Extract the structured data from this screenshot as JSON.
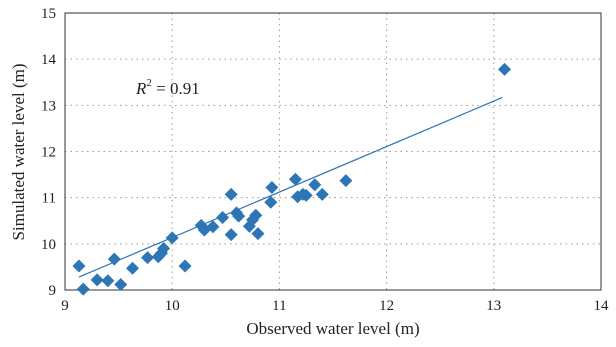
{
  "chart_data": {
    "type": "scatter",
    "xlabel": "Observed water level (m)",
    "ylabel": "Simulated water level (m)",
    "xlim": [
      9,
      14
    ],
    "ylim": [
      9,
      15
    ],
    "xticks": [
      "9",
      "10",
      "11",
      "12",
      "13",
      "14"
    ],
    "yticks": [
      "9",
      "10",
      "11",
      "12",
      "13",
      "14",
      "15"
    ],
    "grid": true,
    "annotation": {
      "symbol": "R",
      "superscript": "2",
      "text": " = 0.91"
    },
    "marker_color": "#2e75b6",
    "line_color": "#2e75b6",
    "points": [
      {
        "x": 9.13,
        "y": 9.52
      },
      {
        "x": 9.17,
        "y": 9.02
      },
      {
        "x": 9.3,
        "y": 9.22
      },
      {
        "x": 9.4,
        "y": 9.2
      },
      {
        "x": 9.46,
        "y": 9.67
      },
      {
        "x": 9.52,
        "y": 9.12
      },
      {
        "x": 9.63,
        "y": 9.47
      },
      {
        "x": 9.77,
        "y": 9.7
      },
      {
        "x": 9.87,
        "y": 9.72
      },
      {
        "x": 9.9,
        "y": 9.8
      },
      {
        "x": 9.92,
        "y": 9.9
      },
      {
        "x": 10.0,
        "y": 10.13
      },
      {
        "x": 10.12,
        "y": 9.52
      },
      {
        "x": 10.27,
        "y": 10.4
      },
      {
        "x": 10.3,
        "y": 10.3
      },
      {
        "x": 10.38,
        "y": 10.37
      },
      {
        "x": 10.47,
        "y": 10.57
      },
      {
        "x": 10.55,
        "y": 10.2
      },
      {
        "x": 10.55,
        "y": 11.07
      },
      {
        "x": 10.6,
        "y": 10.67
      },
      {
        "x": 10.62,
        "y": 10.6
      },
      {
        "x": 10.72,
        "y": 10.38
      },
      {
        "x": 10.75,
        "y": 10.52
      },
      {
        "x": 10.78,
        "y": 10.62
      },
      {
        "x": 10.8,
        "y": 10.22
      },
      {
        "x": 10.92,
        "y": 10.9
      },
      {
        "x": 10.93,
        "y": 11.22
      },
      {
        "x": 11.15,
        "y": 11.4
      },
      {
        "x": 11.17,
        "y": 11.02
      },
      {
        "x": 11.22,
        "y": 11.07
      },
      {
        "x": 11.25,
        "y": 11.05
      },
      {
        "x": 11.33,
        "y": 11.28
      },
      {
        "x": 11.4,
        "y": 11.07
      },
      {
        "x": 11.62,
        "y": 11.37
      },
      {
        "x": 13.1,
        "y": 13.78
      }
    ],
    "trendline": {
      "x": [
        9.13,
        13.08
      ],
      "y": [
        9.28,
        13.17
      ]
    }
  }
}
